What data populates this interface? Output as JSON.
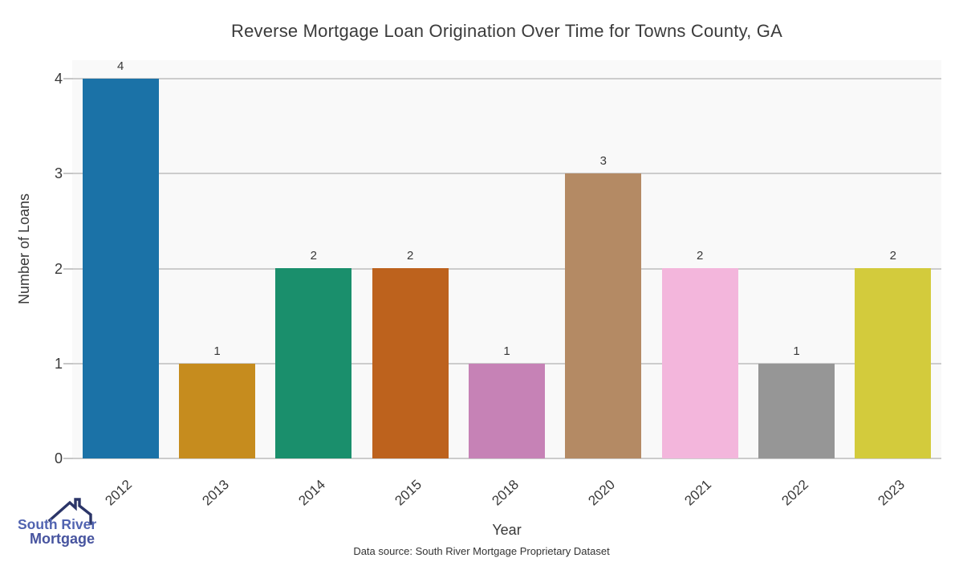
{
  "title": "Reverse Mortgage Loan Origination Over Time for Towns County, GA",
  "caption": "Data source: South River Mortgage Proprietary Dataset",
  "logo": {
    "icon": "house-roof-icon",
    "line1": "South River",
    "line2": "Mortgage",
    "line1_color": "#5063b0",
    "line2_color": "#47549f",
    "roof_color": "#2b3568"
  },
  "chart_data": {
    "type": "bar",
    "title": "Reverse Mortgage Loan Origination Over Time for Towns County, GA",
    "xlabel": "Year",
    "ylabel": "Number of Loans",
    "categories": [
      "2012",
      "2013",
      "2014",
      "2015",
      "2018",
      "2020",
      "2021",
      "2022",
      "2023"
    ],
    "values": [
      4,
      1,
      2,
      2,
      1,
      3,
      2,
      1,
      2
    ],
    "bar_colors": [
      "#1b72a7",
      "#c68c1e",
      "#1a8f6c",
      "#bd621d",
      "#c682b6",
      "#b48a64",
      "#f3b6dc",
      "#969696",
      "#d3cb3c"
    ],
    "value_labels": [
      4,
      1,
      2,
      2,
      1,
      3,
      2,
      1,
      2
    ],
    "yticks": [
      0,
      1,
      2,
      3,
      4
    ],
    "ylim": [
      0,
      4.2
    ],
    "grid": true,
    "legend": false,
    "plot_background": "#f9f9f9",
    "grid_color": "#cccccc"
  }
}
